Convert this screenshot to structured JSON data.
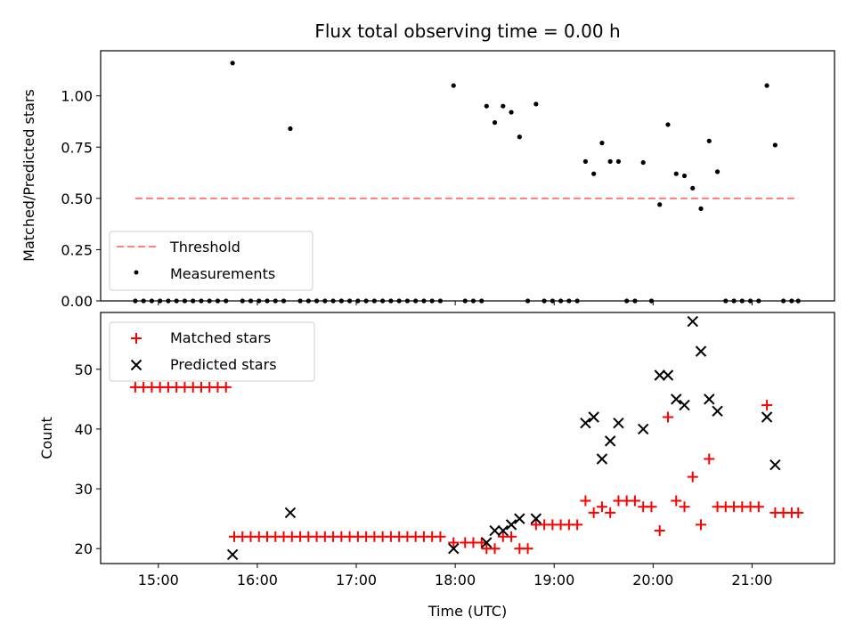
{
  "chart_data": [
    {
      "type": "scatter",
      "title": "Flux total observing time = 0.00 h",
      "xlabel": "",
      "ylabel": "Matched/Predicted stars",
      "ylim": [
        0.0,
        1.22
      ],
      "yticks": [
        "0.00",
        "0.25",
        "0.50",
        "0.75",
        "1.00"
      ],
      "legend_position": "lower-left",
      "threshold": {
        "name": "Threshold",
        "y": 0.5,
        "x_start": "14:46",
        "x_end": "21:28",
        "color": "#ff7f7f"
      },
      "measurements_name": "Measurements",
      "measurements_color": "#000000",
      "measurements": [
        {
          "x": "14:46",
          "y": 0.0
        },
        {
          "x": "14:51",
          "y": 0.0
        },
        {
          "x": "14:56",
          "y": 0.0
        },
        {
          "x": "15:01",
          "y": 0.0
        },
        {
          "x": "15:06",
          "y": 0.0
        },
        {
          "x": "15:11",
          "y": 0.0
        },
        {
          "x": "15:16",
          "y": 0.0
        },
        {
          "x": "15:21",
          "y": 0.0
        },
        {
          "x": "15:26",
          "y": 0.0
        },
        {
          "x": "15:31",
          "y": 0.0
        },
        {
          "x": "15:36",
          "y": 0.0
        },
        {
          "x": "15:41",
          "y": 0.0
        },
        {
          "x": "15:45",
          "y": 1.16
        },
        {
          "x": "15:51",
          "y": 0.0
        },
        {
          "x": "15:56",
          "y": 0.0
        },
        {
          "x": "16:01",
          "y": 0.0
        },
        {
          "x": "16:06",
          "y": 0.0
        },
        {
          "x": "16:11",
          "y": 0.0
        },
        {
          "x": "16:16",
          "y": 0.0
        },
        {
          "x": "16:20",
          "y": 0.84
        },
        {
          "x": "16:26",
          "y": 0.0
        },
        {
          "x": "16:31",
          "y": 0.0
        },
        {
          "x": "16:36",
          "y": 0.0
        },
        {
          "x": "16:41",
          "y": 0.0
        },
        {
          "x": "16:46",
          "y": 0.0
        },
        {
          "x": "16:51",
          "y": 0.0
        },
        {
          "x": "16:56",
          "y": 0.0
        },
        {
          "x": "17:01",
          "y": 0.0
        },
        {
          "x": "17:06",
          "y": 0.0
        },
        {
          "x": "17:11",
          "y": 0.0
        },
        {
          "x": "17:16",
          "y": 0.0
        },
        {
          "x": "17:21",
          "y": 0.0
        },
        {
          "x": "17:26",
          "y": 0.0
        },
        {
          "x": "17:31",
          "y": 0.0
        },
        {
          "x": "17:36",
          "y": 0.0
        },
        {
          "x": "17:41",
          "y": 0.0
        },
        {
          "x": "17:46",
          "y": 0.0
        },
        {
          "x": "17:51",
          "y": 0.0
        },
        {
          "x": "17:59",
          "y": 1.05
        },
        {
          "x": "18:06",
          "y": 0.0
        },
        {
          "x": "18:11",
          "y": 0.0
        },
        {
          "x": "18:16",
          "y": 0.0
        },
        {
          "x": "18:19",
          "y": 0.95
        },
        {
          "x": "18:24",
          "y": 0.87
        },
        {
          "x": "18:29",
          "y": 0.95
        },
        {
          "x": "18:34",
          "y": 0.92
        },
        {
          "x": "18:39",
          "y": 0.8
        },
        {
          "x": "18:44",
          "y": 0.0
        },
        {
          "x": "18:49",
          "y": 0.96
        },
        {
          "x": "18:54",
          "y": 0.0
        },
        {
          "x": "18:59",
          "y": 0.0
        },
        {
          "x": "19:04",
          "y": 0.0
        },
        {
          "x": "19:09",
          "y": 0.0
        },
        {
          "x": "19:14",
          "y": 0.0
        },
        {
          "x": "19:19",
          "y": 0.68
        },
        {
          "x": "19:24",
          "y": 0.62
        },
        {
          "x": "19:29",
          "y": 0.77
        },
        {
          "x": "19:34",
          "y": 0.68
        },
        {
          "x": "19:39",
          "y": 0.68
        },
        {
          "x": "19:44",
          "y": 0.0
        },
        {
          "x": "19:49",
          "y": 0.0
        },
        {
          "x": "19:54",
          "y": 0.675
        },
        {
          "x": "19:59",
          "y": 0.0
        },
        {
          "x": "20:04",
          "y": 0.47
        },
        {
          "x": "20:09",
          "y": 0.86
        },
        {
          "x": "20:14",
          "y": 0.62
        },
        {
          "x": "20:19",
          "y": 0.61
        },
        {
          "x": "20:24",
          "y": 0.55
        },
        {
          "x": "20:29",
          "y": 0.45
        },
        {
          "x": "20:34",
          "y": 0.78
        },
        {
          "x": "20:39",
          "y": 0.63
        },
        {
          "x": "20:44",
          "y": 0.0
        },
        {
          "x": "20:49",
          "y": 0.0
        },
        {
          "x": "20:54",
          "y": 0.0
        },
        {
          "x": "20:59",
          "y": 0.0
        },
        {
          "x": "21:04",
          "y": 0.0
        },
        {
          "x": "21:09",
          "y": 1.05
        },
        {
          "x": "21:14",
          "y": 0.76
        },
        {
          "x": "21:19",
          "y": 0.0
        },
        {
          "x": "21:24",
          "y": 0.0
        },
        {
          "x": "21:28",
          "y": 0.0
        }
      ]
    },
    {
      "type": "scatter",
      "title": "",
      "xlabel": "Time (UTC)",
      "ylabel": "Count",
      "ylim": [
        17.5,
        59.5
      ],
      "xlim": [
        "14:25",
        "21:50"
      ],
      "xticks": [
        "15:00",
        "16:00",
        "17:00",
        "18:00",
        "19:00",
        "20:00",
        "21:00"
      ],
      "yticks": [
        "20",
        "30",
        "40",
        "50"
      ],
      "legend_position": "upper-left",
      "series": [
        {
          "name": "Matched stars",
          "marker": "plus",
          "color": "#ff0000",
          "points": [
            {
              "x": "14:46",
              "y": 47
            },
            {
              "x": "14:51",
              "y": 47
            },
            {
              "x": "14:56",
              "y": 47
            },
            {
              "x": "15:01",
              "y": 47
            },
            {
              "x": "15:06",
              "y": 47
            },
            {
              "x": "15:11",
              "y": 47
            },
            {
              "x": "15:16",
              "y": 47
            },
            {
              "x": "15:21",
              "y": 47
            },
            {
              "x": "15:26",
              "y": 47
            },
            {
              "x": "15:31",
              "y": 47
            },
            {
              "x": "15:36",
              "y": 47
            },
            {
              "x": "15:41",
              "y": 47
            },
            {
              "x": "15:46",
              "y": 22
            },
            {
              "x": "15:51",
              "y": 22
            },
            {
              "x": "15:56",
              "y": 22
            },
            {
              "x": "16:01",
              "y": 22
            },
            {
              "x": "16:06",
              "y": 22
            },
            {
              "x": "16:11",
              "y": 22
            },
            {
              "x": "16:16",
              "y": 22
            },
            {
              "x": "16:21",
              "y": 22
            },
            {
              "x": "16:26",
              "y": 22
            },
            {
              "x": "16:31",
              "y": 22
            },
            {
              "x": "16:36",
              "y": 22
            },
            {
              "x": "16:41",
              "y": 22
            },
            {
              "x": "16:46",
              "y": 22
            },
            {
              "x": "16:51",
              "y": 22
            },
            {
              "x": "16:56",
              "y": 22
            },
            {
              "x": "17:01",
              "y": 22
            },
            {
              "x": "17:06",
              "y": 22
            },
            {
              "x": "17:11",
              "y": 22
            },
            {
              "x": "17:16",
              "y": 22
            },
            {
              "x": "17:21",
              "y": 22
            },
            {
              "x": "17:26",
              "y": 22
            },
            {
              "x": "17:31",
              "y": 22
            },
            {
              "x": "17:36",
              "y": 22
            },
            {
              "x": "17:41",
              "y": 22
            },
            {
              "x": "17:46",
              "y": 22
            },
            {
              "x": "17:51",
              "y": 22
            },
            {
              "x": "17:59",
              "y": 21
            },
            {
              "x": "18:06",
              "y": 21
            },
            {
              "x": "18:11",
              "y": 21
            },
            {
              "x": "18:16",
              "y": 21
            },
            {
              "x": "18:19",
              "y": 20
            },
            {
              "x": "18:24",
              "y": 20
            },
            {
              "x": "18:29",
              "y": 22
            },
            {
              "x": "18:34",
              "y": 22
            },
            {
              "x": "18:39",
              "y": 20
            },
            {
              "x": "18:44",
              "y": 20
            },
            {
              "x": "18:49",
              "y": 24
            },
            {
              "x": "18:54",
              "y": 24
            },
            {
              "x": "18:59",
              "y": 24
            },
            {
              "x": "19:04",
              "y": 24
            },
            {
              "x": "19:09",
              "y": 24
            },
            {
              "x": "19:14",
              "y": 24
            },
            {
              "x": "19:19",
              "y": 28
            },
            {
              "x": "19:24",
              "y": 26
            },
            {
              "x": "19:29",
              "y": 27
            },
            {
              "x": "19:34",
              "y": 26
            },
            {
              "x": "19:39",
              "y": 28
            },
            {
              "x": "19:44",
              "y": 28
            },
            {
              "x": "19:49",
              "y": 28
            },
            {
              "x": "19:54",
              "y": 27
            },
            {
              "x": "19:59",
              "y": 27
            },
            {
              "x": "20:04",
              "y": 23
            },
            {
              "x": "20:09",
              "y": 42
            },
            {
              "x": "20:14",
              "y": 28
            },
            {
              "x": "20:19",
              "y": 27
            },
            {
              "x": "20:24",
              "y": 32
            },
            {
              "x": "20:29",
              "y": 24
            },
            {
              "x": "20:34",
              "y": 35
            },
            {
              "x": "20:39",
              "y": 27
            },
            {
              "x": "20:44",
              "y": 27
            },
            {
              "x": "20:49",
              "y": 27
            },
            {
              "x": "20:54",
              "y": 27
            },
            {
              "x": "20:59",
              "y": 27
            },
            {
              "x": "21:04",
              "y": 27
            },
            {
              "x": "21:09",
              "y": 44
            },
            {
              "x": "21:14",
              "y": 26
            },
            {
              "x": "21:19",
              "y": 26
            },
            {
              "x": "21:24",
              "y": 26
            },
            {
              "x": "21:28",
              "y": 26
            }
          ]
        },
        {
          "name": "Predicted stars",
          "marker": "x",
          "color": "#000000",
          "points": [
            {
              "x": "15:45",
              "y": 19
            },
            {
              "x": "16:20",
              "y": 26
            },
            {
              "x": "17:59",
              "y": 20
            },
            {
              "x": "18:19",
              "y": 21
            },
            {
              "x": "18:24",
              "y": 23
            },
            {
              "x": "18:29",
              "y": 23
            },
            {
              "x": "18:34",
              "y": 24
            },
            {
              "x": "18:39",
              "y": 25
            },
            {
              "x": "18:49",
              "y": 25
            },
            {
              "x": "19:19",
              "y": 41
            },
            {
              "x": "19:24",
              "y": 42
            },
            {
              "x": "19:29",
              "y": 35
            },
            {
              "x": "19:34",
              "y": 38
            },
            {
              "x": "19:39",
              "y": 41
            },
            {
              "x": "19:54",
              "y": 40
            },
            {
              "x": "20:04",
              "y": 49
            },
            {
              "x": "20:09",
              "y": 49
            },
            {
              "x": "20:14",
              "y": 45
            },
            {
              "x": "20:19",
              "y": 44
            },
            {
              "x": "20:24",
              "y": 58
            },
            {
              "x": "20:29",
              "y": 53
            },
            {
              "x": "20:34",
              "y": 45
            },
            {
              "x": "20:39",
              "y": 43
            },
            {
              "x": "21:09",
              "y": 42
            },
            {
              "x": "21:14",
              "y": 34
            }
          ]
        }
      ]
    }
  ]
}
